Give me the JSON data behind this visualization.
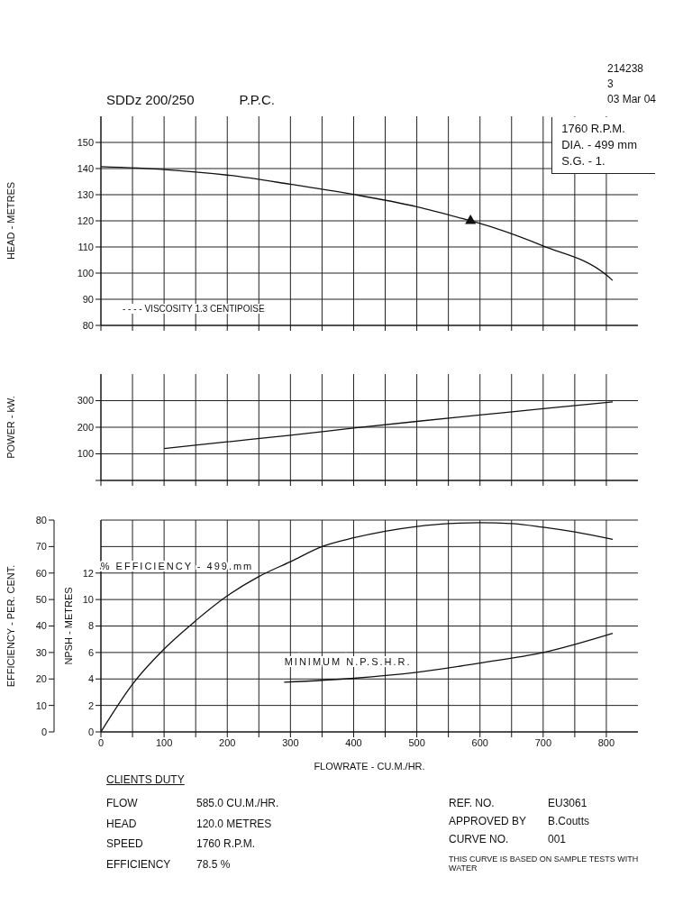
{
  "chart_data": [
    {
      "type": "line",
      "title": "SDDz 200/250",
      "subtitle": "P.P.C.",
      "ylabel": "HEAD - METRES",
      "xlim": [
        0,
        850
      ],
      "xticks": [
        0,
        {
          "value": 50,
          "label": null
        },
        100,
        {
          "value": 150,
          "label": null
        },
        200,
        {
          "value": 250,
          "label": null
        },
        300,
        {
          "value": 350,
          "label": null
        },
        400,
        {
          "value": 450,
          "label": null
        },
        500,
        {
          "value": 550,
          "label": null
        },
        600,
        {
          "value": 650,
          "label": null
        },
        700,
        {
          "value": 750,
          "label": null
        },
        800
      ],
      "ylim": [
        80,
        160
      ],
      "yticks": [
        80,
        90,
        100,
        110,
        120,
        130,
        140,
        150
      ],
      "grid": true,
      "tick_labels": "y",
      "annotations": [
        "214238",
        "3",
        "03 Mar 04",
        "1760 R.P.M.",
        "DIA. - 499 mm",
        "S.G. - 1.",
        "- - - - VISCOSITY 1.3 CENTIPOISE"
      ],
      "series": [
        {
          "color": "#111111",
          "x": [
            0,
            100,
            200,
            300,
            400,
            500,
            585,
            600,
            700,
            800,
            810
          ],
          "values": [
            140.7,
            139.6,
            137.5,
            134,
            130.1,
            125.4,
            120,
            119,
            110.4,
            99.3,
            97.2
          ]
        },
        {
          "type": "scatter",
          "marker": "triangle",
          "color": "#111111",
          "x": [
            585
          ],
          "values": [
            120
          ]
        }
      ]
    },
    {
      "type": "line",
      "ylabel": "POWER - kW.",
      "xlim": [
        0,
        850
      ],
      "xticks": [
        0,
        {
          "value": 50,
          "label": null
        },
        100,
        {
          "value": 150,
          "label": null
        },
        200,
        {
          "value": 250,
          "label": null
        },
        300,
        {
          "value": 350,
          "label": null
        },
        400,
        {
          "value": 450,
          "label": null
        },
        500,
        {
          "value": 550,
          "label": null
        },
        600,
        {
          "value": 650,
          "label": null
        },
        700,
        {
          "value": 750,
          "label": null
        },
        800
      ],
      "ylim": [
        0,
        400
      ],
      "yticks": [
        {
          "value": 0,
          "label": null
        },
        100,
        200,
        300
      ],
      "grid": true,
      "tick_labels": "y",
      "series": [
        {
          "color": "#111111",
          "x": [
            100,
            200,
            300,
            400,
            500,
            600,
            700,
            810
          ],
          "values": [
            120,
            145,
            170,
            197,
            222,
            246,
            270,
            295
          ]
        }
      ]
    },
    {
      "type": "line",
      "xlabel": "FLOWRATE - CU.M./HR.",
      "ylabel": "EFFICIENCY - PER. CENT.",
      "y2label": "NPSH - METRES",
      "xlim": [
        0,
        850
      ],
      "xticks": [
        0,
        {
          "value": 50,
          "label": null
        },
        100,
        {
          "value": 150,
          "label": null
        },
        200,
        {
          "value": 250,
          "label": null
        },
        300,
        {
          "value": 350,
          "label": null
        },
        400,
        {
          "value": 450,
          "label": null
        },
        500,
        {
          "value": 550,
          "label": null
        },
        600,
        {
          "value": 650,
          "label": null
        },
        700,
        {
          "value": 750,
          "label": null
        },
        800
      ],
      "ylim": [
        0,
        80
      ],
      "yticks": [
        0,
        10,
        20,
        30,
        40,
        50,
        60,
        70,
        80
      ],
      "y2lim": [
        0,
        16
      ],
      "y2ticks": [
        0,
        2,
        4,
        6,
        8,
        10,
        12
      ],
      "grid": true,
      "annotations": [
        "CLIENTS DUTY",
        "FLOW",
        "585.0 CU.M./HR.",
        "HEAD",
        "120.0 METRES",
        "SPEED",
        "1760 R.P.M.",
        "EFFICIENCY",
        "78.5 %",
        "REF. NO.",
        "EU3061",
        "APPROVED BY",
        "B.Coutts",
        "CURVE NO.",
        "001",
        "THIS CURVE IS BASED ON SAMPLE TESTS WITH WATER"
      ],
      "series": [
        {
          "name": "% EFFICIENCY - 499.mm",
          "color": "#111111",
          "x": [
            0,
            50,
            100,
            150,
            200,
            250,
            300,
            350,
            400,
            450,
            500,
            550,
            600,
            650,
            700,
            750,
            810
          ],
          "values": [
            0,
            18,
            31.3,
            42,
            51.4,
            58.7,
            64.3,
            70,
            73.3,
            75.8,
            77.6,
            78.7,
            79,
            78.7,
            77.3,
            75.5,
            72.7
          ]
        },
        {
          "name": "MINIMUM N.P.S.H.R.",
          "axis": "y2",
          "color": "#111111",
          "x": [
            290,
            400,
            500,
            600,
            700,
            810
          ],
          "values": [
            3.75,
            4.05,
            4.5,
            5.2,
            6,
            7.45
          ]
        }
      ]
    }
  ]
}
